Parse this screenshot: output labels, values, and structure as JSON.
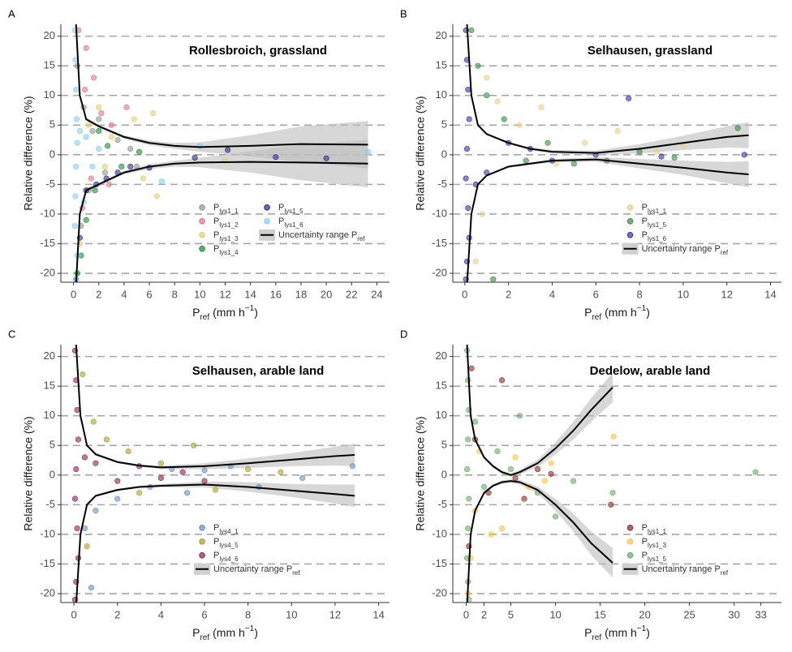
{
  "chart_data": [
    {
      "type": "scatter",
      "panel": "A",
      "title": "Rollesbroich, grassland",
      "y_label": "Relative difference (%)",
      "x_label": {
        "symbol": "P",
        "sub": "ref",
        "unit": "(mm h",
        "sup": "−1",
        "close": ")"
      },
      "xlim": [
        -1,
        25
      ],
      "xticks": [
        0,
        2,
        4,
        6,
        8,
        10,
        12,
        14,
        16,
        18,
        20,
        22,
        24
      ],
      "ylim": [
        -21.5,
        22
      ],
      "yticks": [
        -20,
        -15,
        -10,
        -5,
        0,
        5,
        10,
        15,
        20
      ],
      "grid": true,
      "legend_position": "center",
      "legend_columns": 2,
      "series": [
        {
          "name": "Plys1_1",
          "color": "#8c9a8a",
          "x": [
            0.3,
            0.8,
            1.5,
            2.5,
            3.5,
            5,
            0.6,
            1.2,
            2,
            4.5
          ],
          "values": [
            15,
            8,
            4,
            -3,
            2.5,
            -2,
            -12,
            -6,
            6,
            1
          ]
        },
        {
          "name": "Plys1_2",
          "color": "#d9788a",
          "x": [
            0.4,
            1,
            1.6,
            2.2,
            0.7,
            1.4,
            3,
            4.2,
            0.9,
            2.8
          ],
          "values": [
            21,
            18,
            13,
            7,
            -9,
            -4,
            5,
            8,
            11,
            -5
          ]
        },
        {
          "name": "Plys1_3",
          "color": "#dccf70",
          "x": [
            1.2,
            2,
            3,
            4.8,
            5.5,
            6.3,
            6.6,
            0.5,
            2.5,
            12
          ],
          "values": [
            5,
            8,
            3,
            6,
            -4,
            7,
            -7,
            -15,
            -2,
            -1
          ]
        },
        {
          "name": "Plys1_4",
          "color": "#1f8a3a",
          "x": [
            0.3,
            1,
            2,
            2.7,
            3.8,
            0.6,
            1.7,
            5.2
          ],
          "values": [
            -20,
            -11,
            4,
            1.5,
            -2,
            -17,
            -6,
            0.5
          ]
        },
        {
          "name": "Plys1_5",
          "color": "#2e2a8a",
          "x": [
            0.2,
            0.5,
            1,
            1.8,
            2.6,
            3.5,
            4.5,
            6,
            9.6,
            12.2,
            16,
            20
          ],
          "values": [
            -21,
            -14,
            -6,
            -5,
            -4,
            -3,
            -2,
            -2.2,
            -0.5,
            0.8,
            -0.4,
            -0.6
          ]
        },
        {
          "name": "Plys1_6",
          "color": "#87ceeb",
          "x": [
            0.1,
            0.15,
            0.2,
            0.25,
            0.3,
            0.2,
            0.15,
            0.1,
            0.3,
            0.2,
            0.5,
            1,
            1.5,
            2,
            0.8,
            7,
            10,
            23.3
          ],
          "values": [
            21,
            16,
            11,
            6,
            2,
            -2,
            -7,
            -12,
            -17,
            -21,
            4,
            3,
            -2,
            1,
            -8,
            -4.5,
            1.5,
            0.5
          ]
        }
      ],
      "band": {
        "name": "Uncertainty range Pref",
        "x": [
          0.2,
          0.5,
          1,
          2,
          4,
          6,
          8,
          10,
          14,
          18,
          23.3
        ],
        "upper": [
          22,
          10,
          6,
          4.8,
          3,
          2,
          1.5,
          1.3,
          1.5,
          1.8,
          1.7
        ],
        "lower": [
          -22,
          -10,
          -6,
          -5,
          -3,
          -2,
          -1.5,
          -1.3,
          -1.2,
          -1.3,
          -1.5
        ],
        "ci": [
          0,
          0.3,
          0.3,
          0.3,
          0.3,
          0.4,
          0.5,
          0.8,
          1.8,
          3,
          4
        ]
      }
    },
    {
      "type": "scatter",
      "panel": "B",
      "title": "Selhausen, grassland",
      "y_label": "Relative difference (%)",
      "x_label": {
        "symbol": "P",
        "sub": "ref",
        "unit": "(mm h",
        "sup": "−1",
        "close": ")"
      },
      "xlim": [
        -0.55,
        14.5
      ],
      "xticks": [
        0,
        2,
        4,
        6,
        8,
        10,
        12,
        14
      ],
      "ylim": [
        -21.5,
        22
      ],
      "yticks": [
        -20,
        -15,
        -10,
        -5,
        0,
        5,
        10,
        15,
        20
      ],
      "grid": true,
      "legend_position": "right",
      "legend_columns": 1,
      "series": [
        {
          "name": "Plys1_1",
          "color": "#e8cf8a",
          "x": [
            0.5,
            1,
            1.5,
            2.5,
            3.5,
            4.2,
            5.5,
            7,
            8.8,
            10,
            0.8
          ],
          "values": [
            -18,
            13,
            9,
            5,
            8,
            -1.5,
            2,
            4,
            0.5,
            1.5,
            -10
          ]
        },
        {
          "name": "Plys1_5",
          "color": "#3a8a4a",
          "x": [
            0.3,
            0.6,
            1,
            1.8,
            2.8,
            3.8,
            5,
            6.5,
            8,
            9.6,
            12.5,
            1.3
          ],
          "values": [
            21,
            15,
            10,
            6,
            -1,
            2,
            -1.5,
            -1,
            0.5,
            -0.5,
            4.5,
            -21
          ]
        },
        {
          "name": "Plys1_6",
          "color": "#3f3296",
          "x": [
            0.05,
            0.1,
            0.15,
            0.2,
            0.1,
            0.05,
            0.15,
            0.2,
            0.1,
            0.05,
            0.5,
            1,
            2,
            3,
            4,
            6,
            7.5,
            9,
            12.8
          ],
          "values": [
            21,
            16,
            11,
            6,
            1,
            -4,
            -9,
            -14,
            -18,
            -21,
            -5,
            -3,
            2,
            1,
            -1,
            0,
            9.5,
            -0.3,
            0
          ]
        }
      ],
      "band": {
        "name": "Uncertainty range Pref",
        "x": [
          0.1,
          0.3,
          0.6,
          1,
          2,
          3,
          4,
          6,
          8,
          10,
          12,
          13
        ],
        "upper": [
          22,
          10,
          5,
          3.5,
          2,
          1,
          0.5,
          0.3,
          1,
          2,
          3,
          3.3
        ],
        "lower": [
          -22,
          -10,
          -5,
          -3.5,
          -2,
          -1.5,
          -1,
          -0.8,
          -1.5,
          -2.2,
          -3,
          -3.3
        ],
        "ci": [
          0,
          0.2,
          0.2,
          0.2,
          0.2,
          0.2,
          0.3,
          0.4,
          0.8,
          1.2,
          1.8,
          2.2
        ]
      }
    },
    {
      "type": "scatter",
      "panel": "C",
      "title": "Selhausen, arable land",
      "y_label": "Relative difference (%)",
      "x_label": {
        "symbol": "P",
        "sub": "ref",
        "unit": "(mm h",
        "sup": "−1",
        "close": ")"
      },
      "xlim": [
        -0.6,
        14.5
      ],
      "xticks": [
        0,
        2,
        4,
        6,
        8,
        10,
        12,
        14
      ],
      "ylim": [
        -21.5,
        22
      ],
      "yticks": [
        -20,
        -15,
        -10,
        -5,
        0,
        5,
        10,
        15,
        20
      ],
      "grid": true,
      "legend_position": "center",
      "legend_columns": 1,
      "series": [
        {
          "name": "Plys4_1",
          "color": "#6a8fb5",
          "x": [
            0.5,
            1,
            2,
            3.5,
            4.5,
            5.2,
            6,
            7.2,
            8.5,
            10.5,
            12.8,
            0.8
          ],
          "values": [
            -9,
            -6,
            -4,
            -2,
            1,
            -3,
            0.8,
            1.5,
            -2,
            -0.5,
            1.5,
            -19
          ]
        },
        {
          "name": "Plys4_5",
          "color": "#a5a030",
          "x": [
            0.4,
            0.9,
            1.5,
            2.5,
            3,
            4,
            5.5,
            6.5,
            8,
            9.5,
            0.6
          ],
          "values": [
            17,
            9,
            6,
            4,
            -3,
            2,
            5,
            -2.5,
            1,
            0.5,
            -12
          ]
        },
        {
          "name": "Plys4_6",
          "color": "#8b2252",
          "x": [
            0.05,
            0.1,
            0.15,
            0.2,
            0.1,
            0.05,
            0.15,
            0.2,
            0.1,
            0.05,
            0.5,
            1,
            2,
            3,
            4,
            5,
            6
          ],
          "values": [
            21,
            16,
            11,
            6,
            1,
            -4,
            -9,
            -14,
            -18,
            -21,
            3,
            2,
            -1,
            1.5,
            -0.5,
            0.5,
            -1
          ]
        }
      ],
      "band": {
        "name": "Uncertainty range Pref",
        "x": [
          0.1,
          0.3,
          0.6,
          1,
          2,
          3,
          4,
          6,
          8,
          10,
          12,
          12.9
        ],
        "upper": [
          22,
          10,
          5,
          3.5,
          2.2,
          1.6,
          1.3,
          1.5,
          2,
          2.6,
          3.2,
          3.4
        ],
        "lower": [
          -22,
          -10,
          -5,
          -3.5,
          -2.5,
          -2,
          -1.8,
          -1.6,
          -2,
          -2.6,
          -3.2,
          -3.5
        ],
        "ci": [
          0,
          0.2,
          0.2,
          0.2,
          0.2,
          0.2,
          0.3,
          0.5,
          0.8,
          1.1,
          1.6,
          1.9
        ]
      }
    },
    {
      "type": "scatter",
      "panel": "D",
      "title": "Dedelow, arable land",
      "y_label": "Relative difference (%)",
      "x_label": {
        "symbol": "P",
        "sub": "ref",
        "unit": "(mm h",
        "sup": "−1",
        "close": ")"
      },
      "xlim": [
        -1.5,
        35.3
      ],
      "xticks": [
        0,
        2,
        5,
        10,
        15,
        20,
        25,
        30,
        33
      ],
      "ylim": [
        -21.5,
        22
      ],
      "yticks": [
        -20,
        -15,
        -10,
        -5,
        0,
        5,
        10,
        15,
        20
      ],
      "grid": true,
      "legend_position": "right",
      "legend_columns": 1,
      "series": [
        {
          "name": "Plys1_1",
          "color": "#8b2a2a",
          "x": [
            0.3,
            1,
            2.5,
            4,
            5.5,
            6.5,
            8,
            9.5,
            16.2,
            0.6
          ],
          "values": [
            -12,
            6,
            -3,
            16,
            -0.5,
            -4,
            1,
            0.2,
            -5,
            18
          ]
        },
        {
          "name": "Plys1_3",
          "color": "#f5c542",
          "x": [
            0.5,
            1.5,
            2.8,
            4,
            5.5,
            7,
            8.8,
            9.5,
            16.5,
            0.2,
            1
          ],
          "values": [
            -14,
            4,
            -10,
            -9,
            3,
            -2,
            -1,
            2,
            6.5,
            -20,
            -6
          ]
        },
        {
          "name": "Plys1_5",
          "color": "#6aa86a",
          "x": [
            0.1,
            0.2,
            0.3,
            0.2,
            0.1,
            0.3,
            0.2,
            0.1,
            0.2,
            0.3,
            1,
            2,
            3.5,
            5,
            6,
            8,
            10,
            12,
            16.4,
            32.4
          ],
          "values": [
            21,
            16,
            11,
            6,
            1,
            -4,
            -9,
            -14,
            -18,
            -21,
            9,
            -2,
            4,
            1,
            10,
            -3,
            -7,
            -1,
            -3,
            0.5
          ]
        }
      ],
      "band": {
        "name": "Uncertainty range Pref",
        "x": [
          0.1,
          0.5,
          1,
          2,
          3,
          4,
          5,
          6,
          8,
          10,
          12,
          14,
          16.4
        ],
        "upper": [
          22,
          10,
          6,
          3,
          1.5,
          0.5,
          0,
          0.5,
          2,
          4.5,
          7.5,
          11,
          14.8
        ],
        "lower": [
          -22,
          -10,
          -6,
          -3,
          -1.8,
          -1.2,
          -1,
          -1.2,
          -2.5,
          -5,
          -8,
          -11.5,
          -14.8
        ],
        "ci": [
          0,
          0.3,
          0.3,
          0.3,
          0.3,
          0.3,
          0.3,
          0.4,
          0.6,
          1,
          1.5,
          2,
          2.5
        ]
      }
    }
  ]
}
